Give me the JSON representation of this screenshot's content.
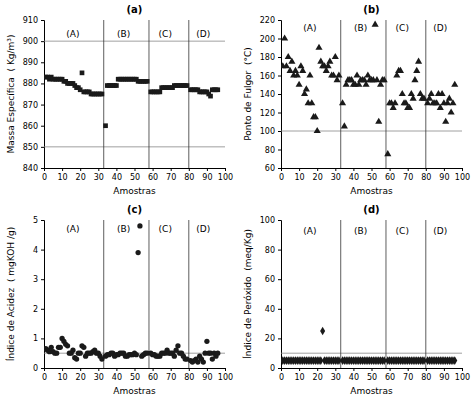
{
  "chart_data": [
    {
      "type": "scatter",
      "title": "(a)",
      "x_label": "Amostras",
      "y_label": "Massa Específica  ( Kg/m³)",
      "xlim": [
        0,
        100
      ],
      "xticks": [
        0,
        10,
        20,
        30,
        40,
        50,
        60,
        70,
        80,
        90,
        100
      ],
      "ylim": [
        840,
        910
      ],
      "yticks": [
        840,
        850,
        860,
        870,
        880,
        890,
        900,
        910
      ],
      "grid": false,
      "marker": "square",
      "color": "#1a1a1a",
      "hlines": {
        "values": [
          850,
          900
        ],
        "color": "#888888"
      },
      "vlines": {
        "values": [
          33,
          58,
          80
        ],
        "color": "#333333"
      },
      "annotations": [
        {
          "text": "(A)",
          "x": 16,
          "y": 905
        },
        {
          "text": "(B)",
          "x": 44,
          "y": 905
        },
        {
          "text": "(C)",
          "x": 67,
          "y": 905
        },
        {
          "text": "(D)",
          "x": 88,
          "y": 905
        }
      ],
      "x": [
        1,
        2,
        3,
        4,
        5,
        6,
        7,
        8,
        9,
        10,
        11,
        12,
        13,
        14,
        15,
        16,
        17,
        18,
        19,
        20,
        21,
        22,
        23,
        24,
        25,
        26,
        27,
        28,
        29,
        30,
        31,
        32,
        34,
        35,
        36,
        37,
        38,
        39,
        40,
        41,
        42,
        43,
        44,
        45,
        46,
        47,
        48,
        49,
        50,
        51,
        52,
        53,
        54,
        55,
        56,
        57,
        59,
        60,
        61,
        62,
        63,
        64,
        65,
        66,
        67,
        68,
        69,
        70,
        71,
        72,
        73,
        74,
        75,
        76,
        77,
        78,
        79,
        81,
        82,
        83,
        84,
        85,
        86,
        87,
        88,
        89,
        90,
        91,
        92,
        93,
        94,
        95,
        96
      ],
      "values": [
        883,
        883,
        882,
        883,
        882,
        882,
        882,
        882,
        882,
        882,
        881,
        881,
        880,
        880,
        880,
        880,
        879,
        878,
        878,
        877,
        885,
        876,
        876,
        876,
        876,
        875,
        875,
        875,
        875,
        875,
        875,
        875,
        860,
        879,
        879,
        879,
        879,
        879,
        879,
        882,
        882,
        882,
        882,
        882,
        882,
        882,
        882,
        882,
        882,
        882,
        881,
        881,
        881,
        881,
        881,
        881,
        876,
        876,
        876,
        876,
        876,
        876,
        878,
        878,
        878,
        878,
        878,
        878,
        878,
        879,
        879,
        879,
        879,
        879,
        879,
        879,
        879,
        877,
        877,
        877,
        877,
        877,
        876,
        876,
        876,
        876,
        876,
        875,
        874,
        877,
        877,
        877,
        877
      ]
    },
    {
      "type": "scatter",
      "title": "(b)",
      "x_label": "Amostras",
      "y_label": "Ponto de Fulgor  (°C)",
      "xlim": [
        0,
        100
      ],
      "xticks": [
        0,
        10,
        20,
        30,
        40,
        50,
        60,
        70,
        80,
        90,
        100
      ],
      "ylim": [
        60,
        220
      ],
      "yticks": [
        60,
        80,
        100,
        120,
        140,
        160,
        180,
        200,
        220
      ],
      "grid": false,
      "marker": "triangle",
      "color": "#1a1a1a",
      "hlines": {
        "values": [
          100
        ],
        "color": "#888888"
      },
      "vlines": {
        "values": [
          33,
          58,
          80
        ],
        "color": "#333333"
      },
      "annotations": [
        {
          "text": "(A)",
          "x": 16,
          "y": 215
        },
        {
          "text": "(B)",
          "x": 44,
          "y": 215
        },
        {
          "text": "(C)",
          "x": 67,
          "y": 215
        },
        {
          "text": "(D)",
          "x": 88,
          "y": 215
        }
      ],
      "x": [
        1,
        2,
        3,
        4,
        5,
        6,
        7,
        8,
        9,
        10,
        11,
        12,
        13,
        14,
        15,
        16,
        17,
        18,
        19,
        20,
        21,
        22,
        23,
        24,
        25,
        26,
        27,
        28,
        29,
        30,
        31,
        32,
        34,
        35,
        36,
        37,
        38,
        39,
        40,
        41,
        42,
        43,
        44,
        45,
        46,
        47,
        48,
        49,
        50,
        51,
        52,
        53,
        54,
        55,
        56,
        57,
        59,
        60,
        61,
        62,
        63,
        64,
        65,
        66,
        67,
        68,
        69,
        70,
        71,
        72,
        73,
        74,
        75,
        76,
        77,
        78,
        79,
        81,
        82,
        83,
        84,
        85,
        86,
        87,
        88,
        89,
        90,
        91,
        92,
        93,
        94,
        95,
        96
      ],
      "values": [
        170,
        200,
        170,
        180,
        165,
        175,
        160,
        165,
        160,
        150,
        170,
        165,
        140,
        145,
        130,
        160,
        130,
        115,
        115,
        100,
        190,
        175,
        170,
        170,
        165,
        170,
        175,
        160,
        160,
        180,
        155,
        160,
        130,
        105,
        150,
        155,
        155,
        155,
        150,
        150,
        160,
        150,
        155,
        155,
        155,
        150,
        160,
        155,
        155,
        155,
        215,
        155,
        110,
        150,
        155,
        155,
        75,
        130,
        130,
        125,
        130,
        160,
        165,
        165,
        140,
        130,
        130,
        125,
        125,
        140,
        135,
        155,
        165,
        175,
        140,
        135,
        135,
        130,
        135,
        140,
        130,
        130,
        130,
        140,
        125,
        140,
        130,
        110,
        130,
        135,
        120,
        130,
        150
      ]
    },
    {
      "type": "scatter",
      "title": "(c)",
      "x_label": "Amostras",
      "y_label": "Índice de Acidez  ( mgKOH /g)",
      "xlim": [
        0,
        100
      ],
      "xticks": [
        0,
        10,
        20,
        30,
        40,
        50,
        60,
        70,
        80,
        90,
        100
      ],
      "ylim": [
        0,
        5
      ],
      "yticks": [
        0,
        1,
        2,
        3,
        4,
        5
      ],
      "grid": false,
      "marker": "circle",
      "color": "#1a1a1a",
      "hlines": {
        "values": [
          0.5
        ],
        "color": "#888888"
      },
      "vlines": {
        "values": [
          33,
          58,
          80
        ],
        "color": "#333333"
      },
      "annotations": [
        {
          "text": "(A)",
          "x": 16,
          "y": 4.8
        },
        {
          "text": "(B)",
          "x": 44,
          "y": 4.8
        },
        {
          "text": "(C)",
          "x": 67,
          "y": 4.8
        },
        {
          "text": "(D)",
          "x": 88,
          "y": 4.8
        }
      ],
      "x": [
        1,
        2,
        3,
        4,
        5,
        6,
        7,
        8,
        9,
        10,
        11,
        12,
        13,
        14,
        15,
        16,
        17,
        18,
        19,
        20,
        21,
        22,
        23,
        24,
        25,
        26,
        27,
        28,
        29,
        30,
        31,
        32,
        34,
        35,
        36,
        37,
        38,
        39,
        40,
        41,
        42,
        43,
        44,
        45,
        46,
        47,
        48,
        49,
        50,
        51,
        52,
        53,
        54,
        55,
        56,
        57,
        59,
        60,
        61,
        62,
        63,
        64,
        65,
        66,
        67,
        68,
        69,
        70,
        71,
        72,
        73,
        74,
        75,
        76,
        77,
        78,
        79,
        81,
        82,
        83,
        84,
        85,
        86,
        87,
        88,
        89,
        90,
        91,
        92,
        93,
        94,
        95,
        96
      ],
      "values": [
        0.65,
        0.6,
        0.55,
        0.7,
        0.55,
        0.5,
        0.5,
        0.7,
        0.7,
        1.0,
        0.9,
        0.8,
        0.75,
        0.5,
        0.5,
        0.6,
        0.35,
        0.3,
        0.5,
        0.5,
        0.75,
        0.7,
        0.4,
        0.5,
        0.5,
        0.5,
        0.55,
        0.6,
        0.5,
        0.5,
        0.4,
        0.3,
        0.4,
        0.45,
        0.45,
        0.5,
        0.5,
        0.4,
        0.45,
        0.45,
        0.5,
        0.5,
        0.5,
        0.4,
        0.4,
        0.45,
        0.45,
        0.45,
        0.5,
        0.45,
        3.9,
        4.8,
        0.4,
        0.45,
        0.5,
        0.5,
        0.5,
        0.45,
        0.45,
        0.4,
        0.4,
        0.4,
        0.5,
        0.5,
        0.5,
        0.6,
        0.5,
        0.5,
        0.5,
        0.4,
        0.6,
        0.75,
        0.5,
        0.5,
        0.4,
        0.3,
        0.3,
        0.25,
        0.2,
        0.25,
        0.3,
        0.2,
        0.4,
        0.3,
        0.2,
        0.5,
        0.9,
        0.5,
        0.5,
        0.3,
        0.5,
        0.4,
        0.5
      ]
    },
    {
      "type": "scatter",
      "title": "(d)",
      "x_label": "Amostras",
      "y_label": "Índice de Peróxido  (meq/Kg)",
      "xlim": [
        0,
        100
      ],
      "xticks": [
        0,
        10,
        20,
        30,
        40,
        50,
        60,
        70,
        80,
        90,
        100
      ],
      "ylim": [
        0,
        100
      ],
      "yticks": [
        0,
        20,
        40,
        60,
        80,
        100
      ],
      "grid": false,
      "marker": "diamond",
      "color": "#1a1a1a",
      "hlines": {
        "values": [
          10
        ],
        "color": "#888888"
      },
      "vlines": {
        "values": [
          33,
          58,
          80
        ],
        "color": "#333333"
      },
      "annotations": [
        {
          "text": "(A)",
          "x": 16,
          "y": 95
        },
        {
          "text": "(B)",
          "x": 44,
          "y": 95
        },
        {
          "text": "(C)",
          "x": 67,
          "y": 95
        },
        {
          "text": "(D)",
          "x": 88,
          "y": 95
        }
      ],
      "x": [
        1,
        2,
        3,
        4,
        5,
        6,
        7,
        8,
        9,
        10,
        11,
        12,
        13,
        14,
        15,
        16,
        17,
        18,
        19,
        20,
        21,
        22,
        23,
        24,
        25,
        26,
        27,
        28,
        29,
        30,
        31,
        32,
        34,
        35,
        36,
        37,
        38,
        39,
        40,
        41,
        42,
        43,
        44,
        45,
        46,
        47,
        48,
        49,
        50,
        51,
        52,
        53,
        54,
        55,
        56,
        57,
        59,
        60,
        61,
        62,
        63,
        64,
        65,
        66,
        67,
        68,
        69,
        70,
        71,
        72,
        73,
        74,
        75,
        76,
        77,
        78,
        79,
        81,
        82,
        83,
        84,
        85,
        86,
        87,
        88,
        89,
        90,
        91,
        92,
        93,
        94,
        95,
        96
      ],
      "values": [
        5,
        5,
        5,
        5,
        5,
        5,
        5,
        5,
        5,
        5,
        5,
        5,
        5,
        5,
        5,
        5,
        5,
        5,
        5,
        5,
        5,
        5,
        25,
        5,
        5,
        5,
        5,
        5,
        5,
        5,
        5,
        5,
        5,
        5,
        5,
        5,
        5,
        5,
        5,
        5,
        5,
        5,
        5,
        5,
        5,
        5,
        5,
        5,
        5,
        5,
        5,
        5,
        5,
        5,
        5,
        5,
        5,
        5,
        5,
        5,
        5,
        5,
        5,
        5,
        5,
        5,
        5,
        5,
        5,
        5,
        5,
        5,
        5,
        5,
        5,
        5,
        5,
        5,
        5,
        5,
        5,
        5,
        5,
        5,
        5,
        5,
        5,
        5,
        5,
        5,
        5,
        5,
        5
      ]
    }
  ]
}
